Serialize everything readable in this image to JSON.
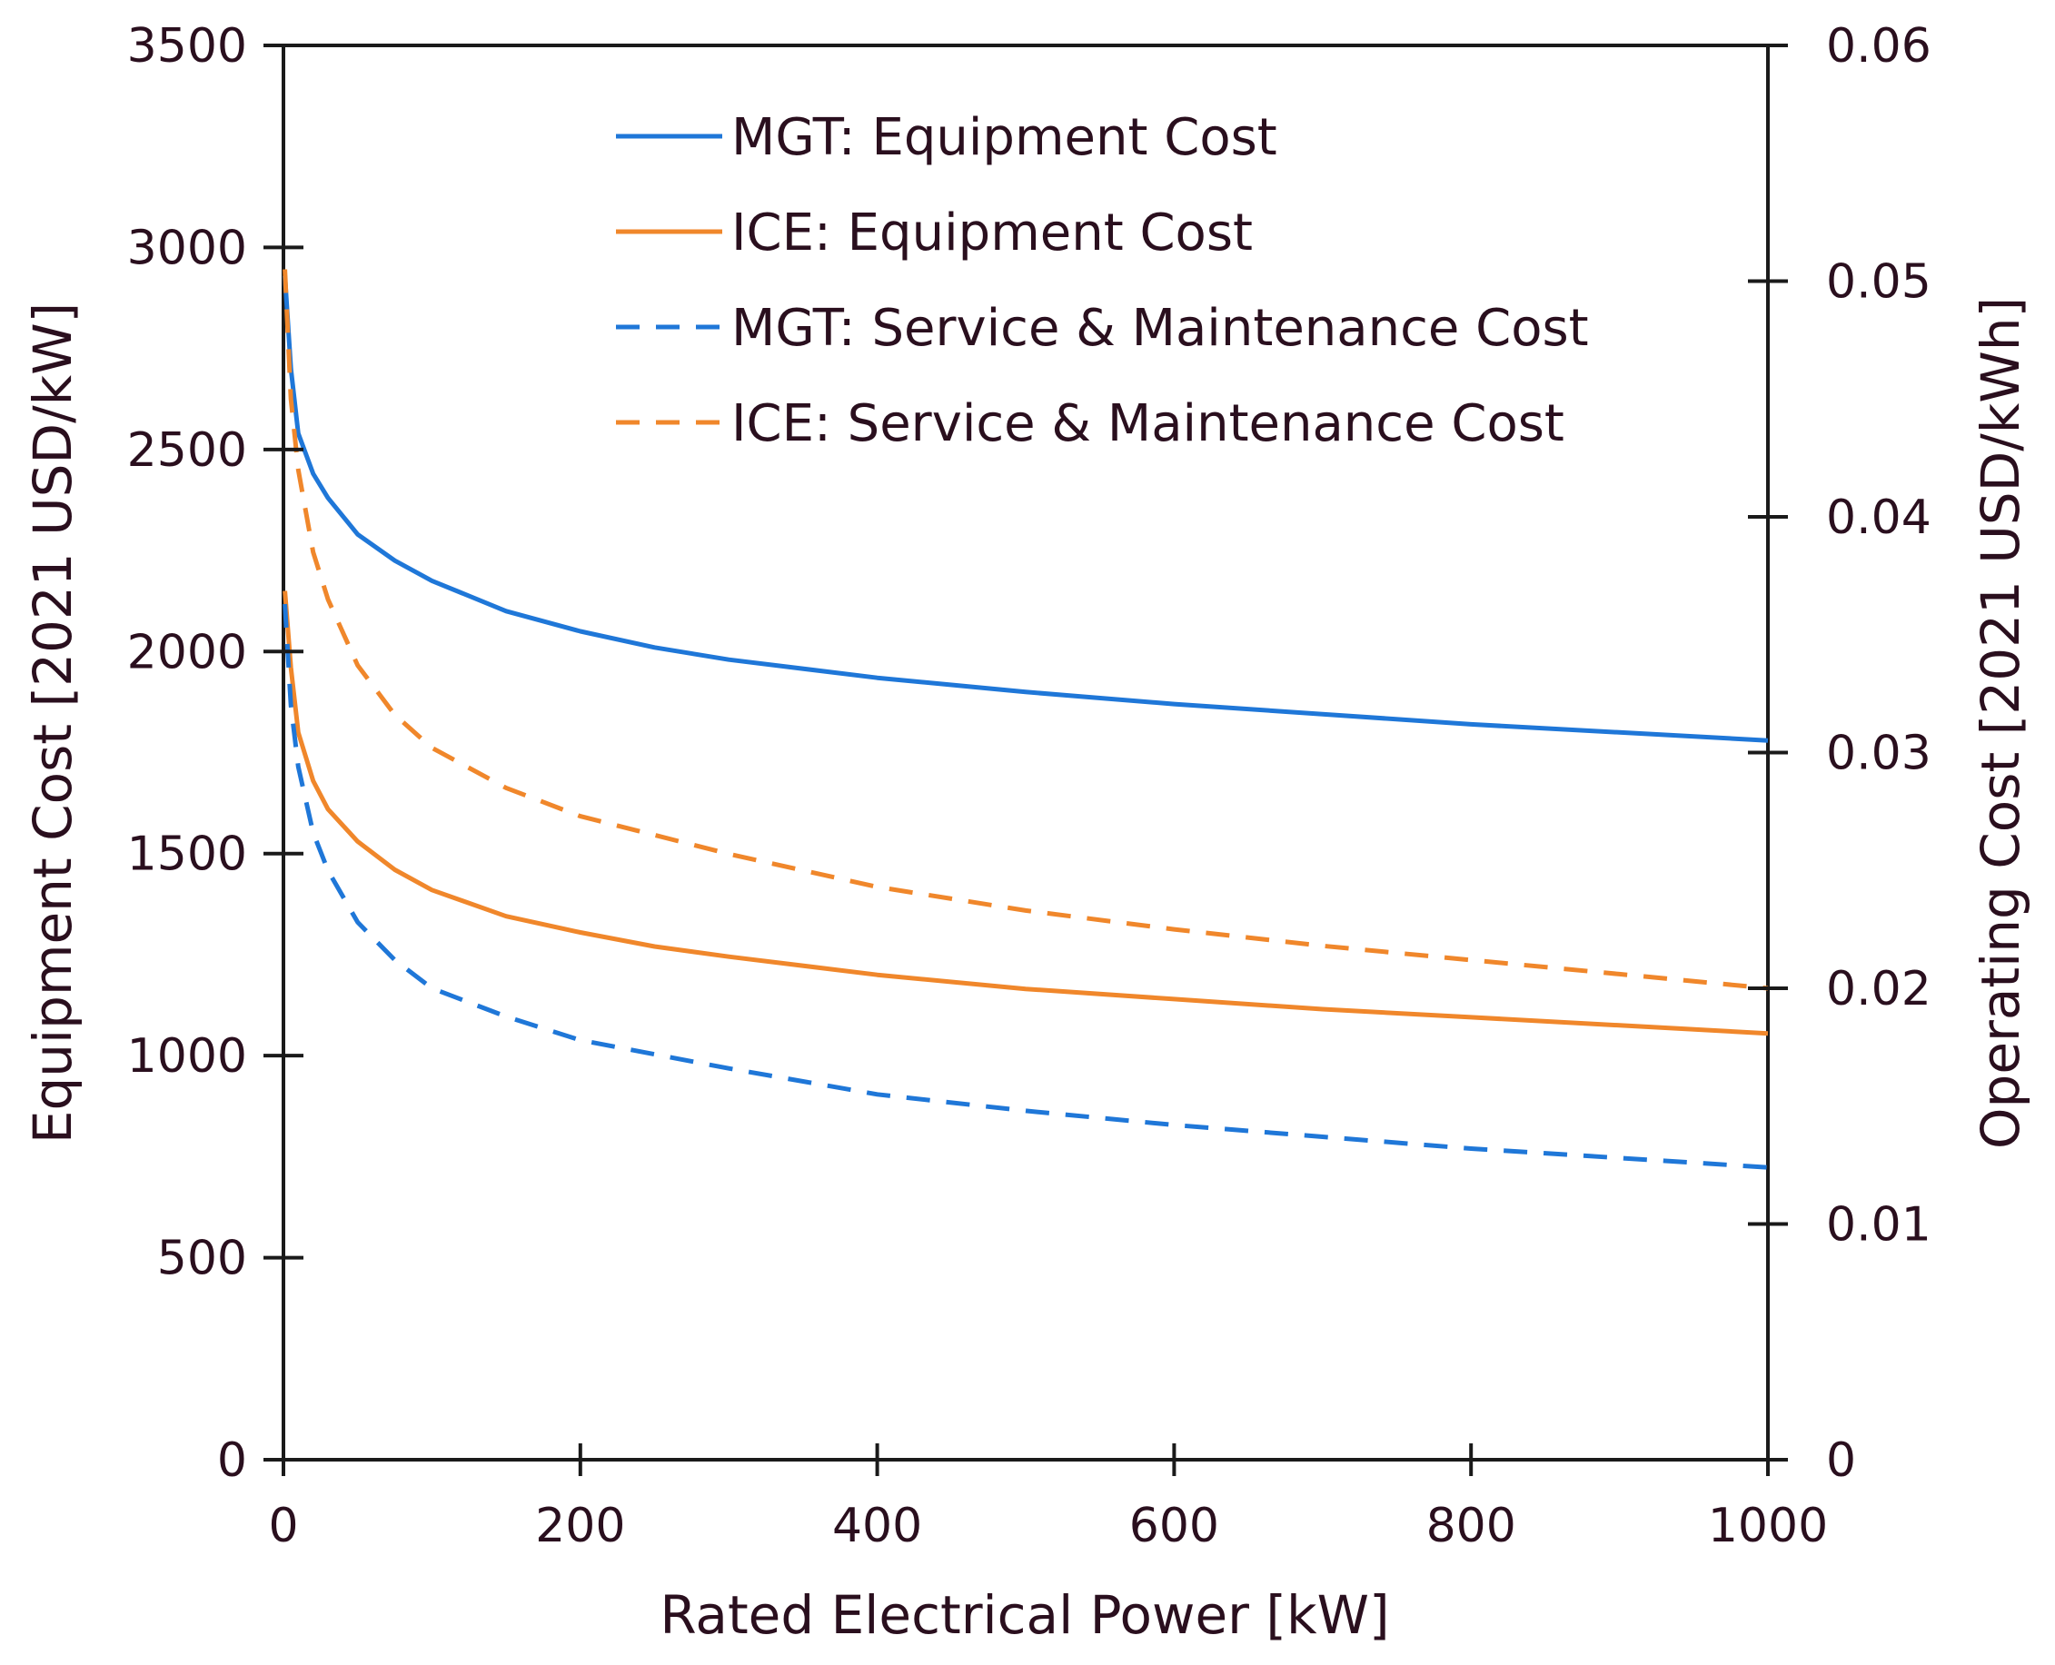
{
  "chart_data": {
    "type": "line",
    "xlabel": "Rated Electrical Power [kW]",
    "ylabel_left": "Equipment Cost [2021 USD/kW]",
    "ylabel_right": "Operating Cost [2021 USD/kWh]",
    "xlim": [
      0,
      1000
    ],
    "ylim_left": [
      0,
      3500
    ],
    "ylim_right": [
      0,
      0.06
    ],
    "x_ticks": [
      0,
      200,
      400,
      600,
      800,
      1000
    ],
    "x_tick_labels": [
      "0",
      "200",
      "400",
      "600",
      "800",
      "1000"
    ],
    "y_left_ticks": [
      0,
      500,
      1000,
      1500,
      2000,
      2500,
      3000,
      3500
    ],
    "y_left_tick_labels": [
      "0",
      "500",
      "1000",
      "1500",
      "2000",
      "2500",
      "3000",
      "3500"
    ],
    "y_right_ticks": [
      0,
      0.01,
      0.02,
      0.03,
      0.04,
      0.05,
      0.06
    ],
    "y_right_tick_labels": [
      "0",
      "0.01",
      "0.02",
      "0.03",
      "0.04",
      "0.05",
      "0.06"
    ],
    "grid": false,
    "legend_position": "top-center",
    "series": [
      {
        "name": "MGT: Equipment Cost",
        "axis": "left",
        "color": "#1f77d8",
        "dash": "solid",
        "x": [
          1,
          5,
          10,
          20,
          30,
          50,
          75,
          100,
          150,
          200,
          250,
          300,
          400,
          500,
          600,
          700,
          800,
          900,
          1000
        ],
        "y": [
          2930,
          2700,
          2540,
          2440,
          2380,
          2290,
          2225,
          2175,
          2100,
          2050,
          2010,
          1980,
          1935,
          1900,
          1870,
          1845,
          1820,
          1800,
          1780
        ]
      },
      {
        "name": "ICE: Equipment Cost",
        "axis": "left",
        "color": "#f0872b",
        "dash": "solid",
        "x": [
          1,
          5,
          10,
          20,
          30,
          50,
          75,
          100,
          150,
          200,
          250,
          300,
          400,
          500,
          600,
          700,
          800,
          900,
          1000
        ],
        "y": [
          2150,
          1960,
          1800,
          1680,
          1610,
          1530,
          1460,
          1410,
          1345,
          1305,
          1270,
          1245,
          1200,
          1165,
          1140,
          1115,
          1095,
          1075,
          1055
        ]
      },
      {
        "name": "MGT: Service & Maintenance Cost",
        "axis": "right",
        "color": "#1f77d8",
        "dash": "dashed",
        "x": [
          1,
          5,
          10,
          20,
          30,
          50,
          75,
          100,
          150,
          200,
          250,
          300,
          400,
          500,
          600,
          700,
          800,
          900,
          1000
        ],
        "y": [
          0.0363,
          0.032,
          0.0294,
          0.0266,
          0.025,
          0.0228,
          0.0212,
          0.02,
          0.0188,
          0.0178,
          0.0172,
          0.0166,
          0.0155,
          0.0148,
          0.0142,
          0.0137,
          0.0132,
          0.0128,
          0.0124
        ]
      },
      {
        "name": "ICE: Service & Maintenance Cost",
        "axis": "right",
        "color": "#f0872b",
        "dash": "dashed",
        "x": [
          1,
          5,
          10,
          20,
          30,
          50,
          75,
          100,
          150,
          200,
          250,
          300,
          400,
          500,
          600,
          700,
          800,
          900,
          1000
        ],
        "y": [
          0.0505,
          0.045,
          0.042,
          0.0385,
          0.0365,
          0.0337,
          0.0316,
          0.0302,
          0.0285,
          0.0273,
          0.0265,
          0.0257,
          0.0243,
          0.0233,
          0.0225,
          0.0218,
          0.0212,
          0.0206,
          0.02
        ]
      }
    ]
  }
}
